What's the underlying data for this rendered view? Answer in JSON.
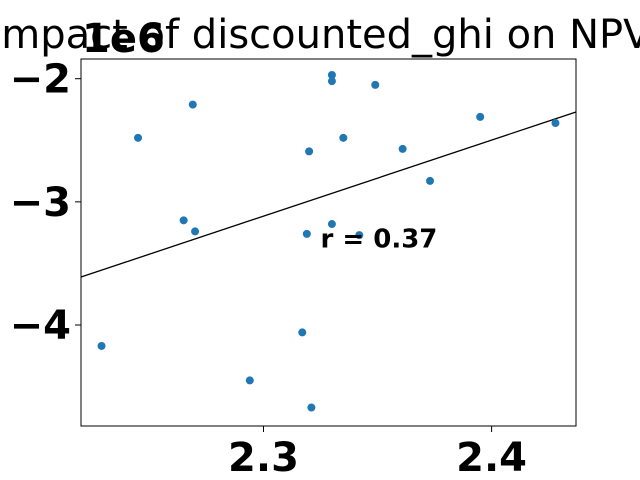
{
  "chart_data": {
    "type": "scatter",
    "title": "Impact of discounted_ghi on NPV",
    "xlabel": "",
    "ylabel": "",
    "y_offset_label": "1e6",
    "xlim": [
      2.22,
      2.437
    ],
    "ylim": [
      -4.82,
      -1.84
    ],
    "xticks": [
      2.3,
      2.4
    ],
    "xtick_labels": [
      "2.3",
      "2.4"
    ],
    "yticks": [
      -2,
      -3,
      -4
    ],
    "ytick_labels": [
      "−2",
      "−3",
      "−4"
    ],
    "grid": false,
    "point_color": "#1f77b4",
    "line_color": "#000000",
    "points": [
      {
        "x": 2.229,
        "y": -4.17
      },
      {
        "x": 2.245,
        "y": -2.48
      },
      {
        "x": 2.265,
        "y": -3.15
      },
      {
        "x": 2.269,
        "y": -2.21
      },
      {
        "x": 2.27,
        "y": -3.24
      },
      {
        "x": 2.294,
        "y": -4.45
      },
      {
        "x": 2.317,
        "y": -4.06
      },
      {
        "x": 2.319,
        "y": -3.26
      },
      {
        "x": 2.32,
        "y": -2.59
      },
      {
        "x": 2.321,
        "y": -4.67
      },
      {
        "x": 2.33,
        "y": -1.97
      },
      {
        "x": 2.33,
        "y": -2.02
      },
      {
        "x": 2.33,
        "y": -3.18
      },
      {
        "x": 2.335,
        "y": -2.48
      },
      {
        "x": 2.342,
        "y": -3.27
      },
      {
        "x": 2.349,
        "y": -2.05
      },
      {
        "x": 2.361,
        "y": -2.57
      },
      {
        "x": 2.373,
        "y": -2.83
      },
      {
        "x": 2.395,
        "y": -2.31
      },
      {
        "x": 2.428,
        "y": -2.36
      }
    ],
    "trendline": {
      "x": [
        2.22,
        2.437
      ],
      "y": [
        -3.61,
        -2.27
      ]
    },
    "annotation": {
      "text": "r = 0.37",
      "x": 2.325,
      "y": -3.29
    }
  }
}
